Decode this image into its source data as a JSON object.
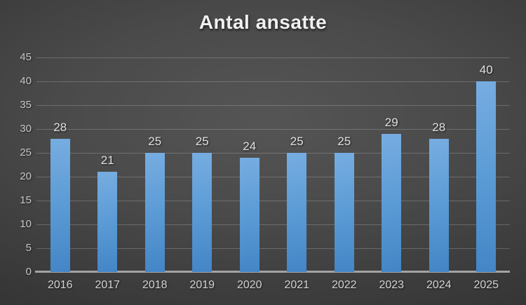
{
  "chart_data": {
    "type": "bar",
    "title": "Antal ansatte",
    "categories": [
      "2016",
      "2017",
      "2018",
      "2019",
      "2020",
      "2021",
      "2022",
      "2023",
      "2024",
      "2025"
    ],
    "values": [
      28,
      21,
      25,
      25,
      24,
      25,
      25,
      29,
      28,
      40
    ],
    "xlabel": "",
    "ylabel": "",
    "ylim": [
      0,
      45
    ],
    "ytick_step": 5,
    "grid": true,
    "legend": false,
    "data_labels": true,
    "colors": {
      "bar_light": "#77ade1",
      "bar_mid": "#5b9bd5",
      "bar_dark": "#4385c6",
      "gridline": "rgba(255,255,255,0.20)",
      "axis_line": "#a3a3a3",
      "title_text": "#f0f0f0",
      "tick_text": "#c6c6c6",
      "data_label_text": "#e0e0e0",
      "background_center": "#555555",
      "background_edge": "#262626"
    }
  }
}
